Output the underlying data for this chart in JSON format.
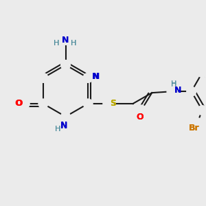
{
  "bg_color": "#ebebeb",
  "bond_color": "#1a1a1a",
  "colors": {
    "N": "#0000cc",
    "O": "#ff0000",
    "S": "#bbaa00",
    "Br": "#cc7700",
    "H": "#4a8a9a",
    "C": "#1a1a1a"
  },
  "lw": 1.5,
  "fig_size": [
    3.0,
    3.0
  ],
  "dpi": 100
}
